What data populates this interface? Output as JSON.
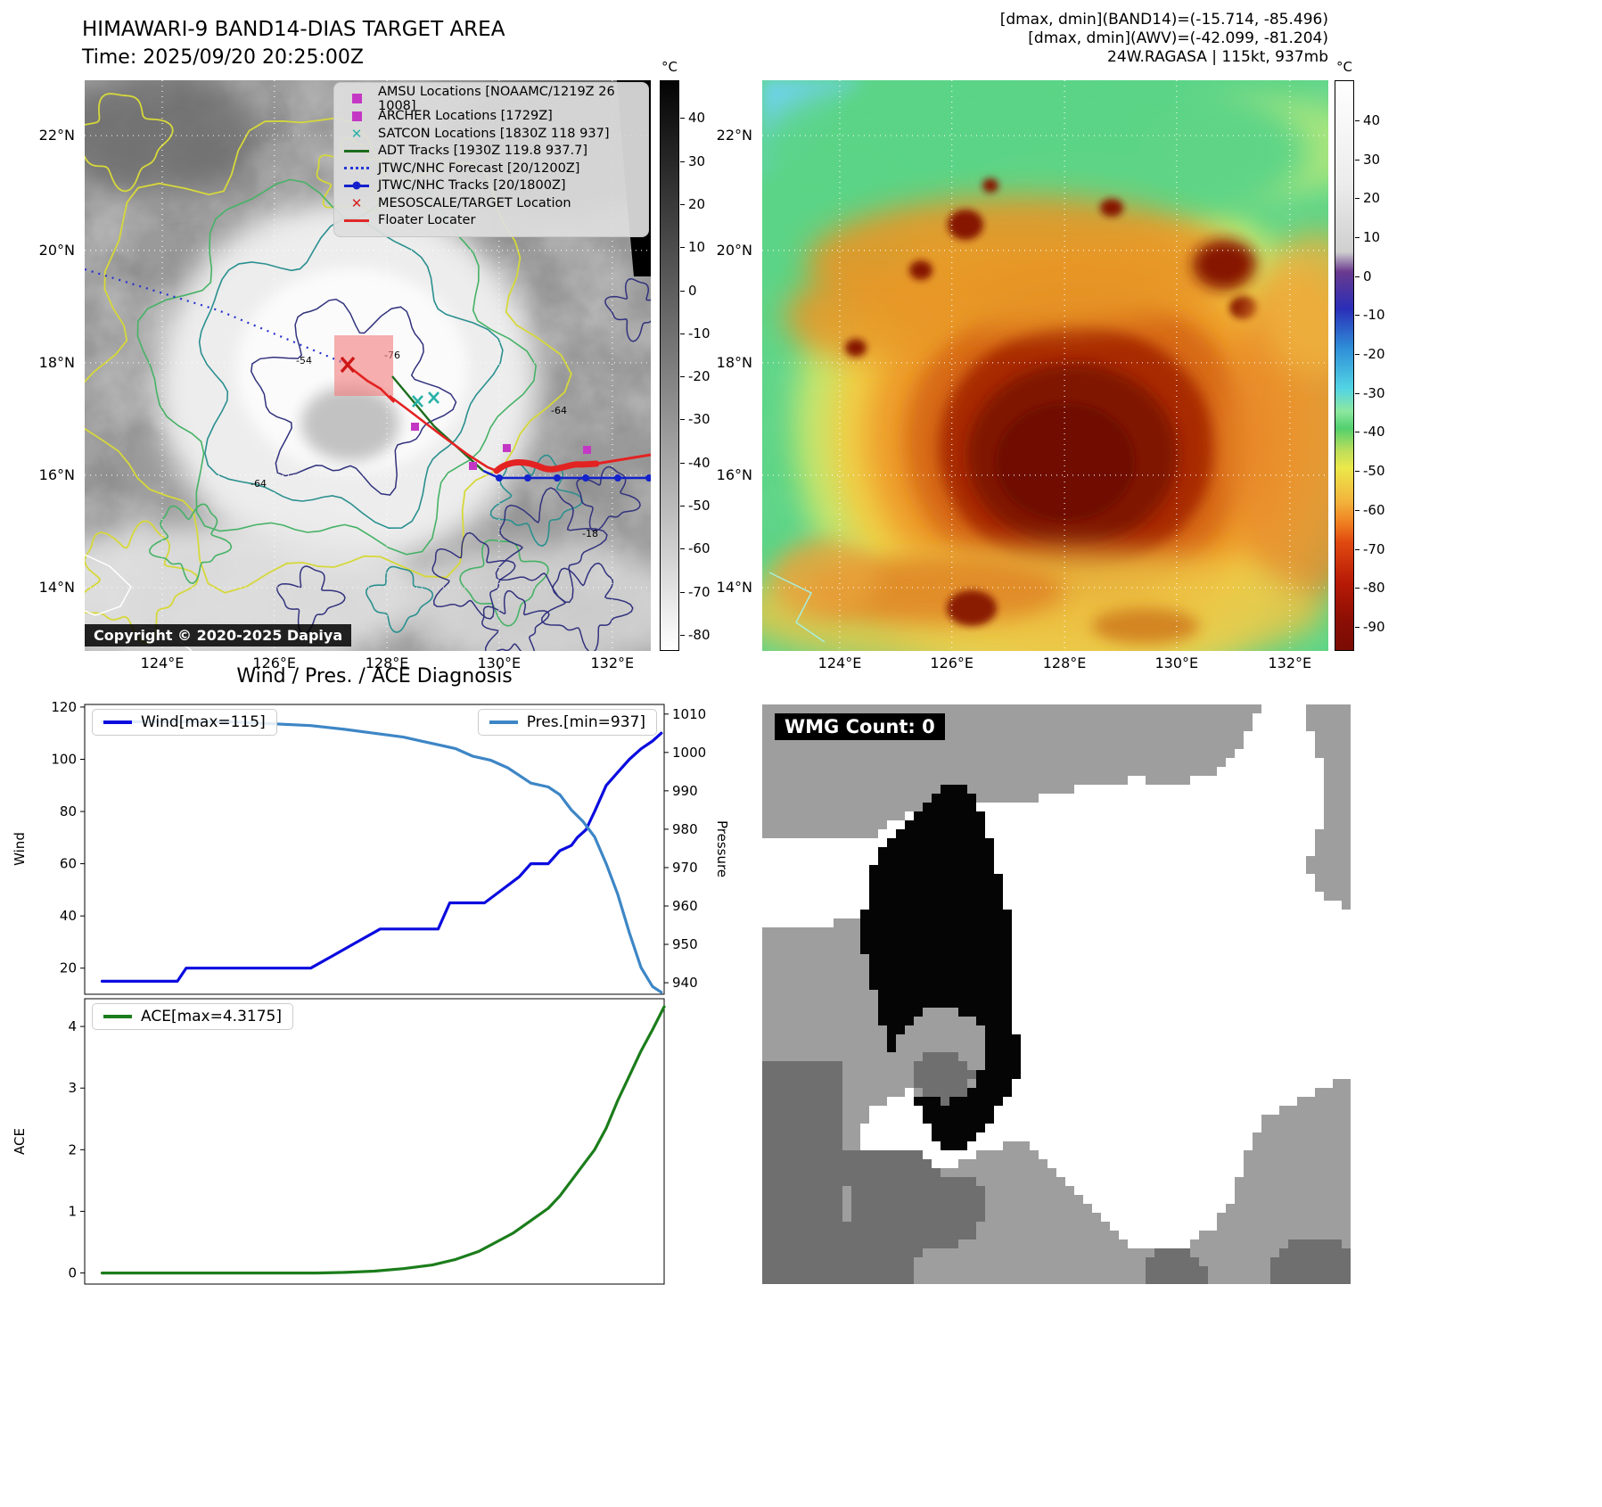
{
  "top_left": {
    "title": "HIMAWARI-9 BAND14-DIAS TARGET AREA",
    "subtitle": "Time: 2025/09/20 20:25:00Z",
    "legend": [
      {
        "icon": "magenta-square",
        "label": "AMSU Locations [NOAAMC/1219Z 26 1008]"
      },
      {
        "icon": "magenta-square",
        "label": "ARCHER Locations [1729Z]"
      },
      {
        "icon": "teal-x",
        "label": "SATCON Locations [1830Z 118 937]"
      },
      {
        "icon": "green-line",
        "label": "ADT Tracks [1930Z 119.8 937.7]"
      },
      {
        "icon": "blue-dotted-line",
        "label": "JTWC/NHC Forecast [20/1200Z]"
      },
      {
        "icon": "blue-line-dot",
        "label": "JTWC/NHC Tracks [20/1800Z]"
      },
      {
        "icon": "red-x",
        "label": "MESOSCALE/TARGET Location"
      },
      {
        "icon": "red-line",
        "label": "Floater Locater"
      }
    ],
    "contour_labels": [
      "-76",
      "-64",
      "-64",
      "-54",
      "-18"
    ],
    "copyright": "Copyright © 2020-2025 Dapiya",
    "colorbar": {
      "unit": "°C",
      "ticks": [
        "40",
        "30",
        "20",
        "10",
        "0",
        "-10",
        "-20",
        "-30",
        "-40",
        "-50",
        "-60",
        "-70",
        "-80"
      ]
    }
  },
  "top_right": {
    "header_lines": [
      "[dmax, dmin](BAND14)=(-15.714, -85.496)",
      "[dmax, dmin](AWV)=(-42.099, -81.204)",
      "24W.RAGASA | 115kt, 937mb"
    ],
    "colorbar": {
      "unit": "°C",
      "ticks": [
        "40",
        "30",
        "20",
        "10",
        "0",
        "-10",
        "-20",
        "-30",
        "-40",
        "-50",
        "-60",
        "-70",
        "-80",
        "-90"
      ]
    }
  },
  "maps": {
    "lat_labels": [
      "22°N",
      "20°N",
      "18°N",
      "16°N",
      "14°N"
    ],
    "lon_labels": [
      "124°E",
      "126°E",
      "128°E",
      "130°E",
      "132°E"
    ]
  },
  "bottom_left": {
    "title": "Wind / Pres. / ACE Diagnosis"
  },
  "bottom_right": {
    "badge": "WMG Count: 0"
  },
  "chart_data": [
    {
      "type": "line",
      "title": "Wind / Pres. / ACE Diagnosis",
      "ylabel_left": "Wind",
      "ylabel_right": "Pressure",
      "ylim_left": [
        10,
        121
      ],
      "ylim_right": [
        937,
        1012.5
      ],
      "yticks_left": [
        20,
        40,
        60,
        80,
        100,
        120
      ],
      "yticks_right": [
        940,
        950,
        960,
        970,
        980,
        990,
        1000,
        1010
      ],
      "x_range": [
        0,
        100
      ],
      "grid": false,
      "legend_position": [
        "upper left",
        "upper right"
      ],
      "series": [
        {
          "name": "Wind[max=115]",
          "axis": "left",
          "color": "#0b0bdf",
          "points": [
            [
              3,
              15
            ],
            [
              16,
              15
            ],
            [
              17.5,
              20
            ],
            [
              39,
              20
            ],
            [
              43,
              25
            ],
            [
              47,
              30
            ],
            [
              51,
              35
            ],
            [
              61,
              35
            ],
            [
              63,
              45
            ],
            [
              69,
              45
            ],
            [
              72,
              50
            ],
            [
              75,
              55
            ],
            [
              77,
              60
            ],
            [
              80,
              60
            ],
            [
              82,
              65
            ],
            [
              84,
              67
            ],
            [
              85,
              70
            ],
            [
              86.5,
              73
            ],
            [
              88,
              80
            ],
            [
              90,
              90
            ],
            [
              92,
              95
            ],
            [
              94,
              100
            ],
            [
              96,
              104
            ],
            [
              98,
              107
            ],
            [
              99.5,
              110
            ]
          ]
        },
        {
          "name": "Pres.[min=937]",
          "axis": "right",
          "color": "#3d86c6",
          "points": [
            [
              3,
              1008
            ],
            [
              25,
              1008
            ],
            [
              39,
              1007
            ],
            [
              45,
              1006
            ],
            [
              50,
              1005
            ],
            [
              55,
              1004
            ],
            [
              58,
              1003
            ],
            [
              61,
              1002
            ],
            [
              64,
              1001
            ],
            [
              67,
              999
            ],
            [
              70,
              998
            ],
            [
              73,
              996
            ],
            [
              75,
              994
            ],
            [
              77,
              992
            ],
            [
              80,
              991
            ],
            [
              82,
              989
            ],
            [
              84,
              985
            ],
            [
              86,
              982
            ],
            [
              88,
              978
            ],
            [
              90,
              971
            ],
            [
              92,
              963
            ],
            [
              94,
              953
            ],
            [
              96,
              944
            ],
            [
              98,
              939
            ],
            [
              99.5,
              937.5
            ]
          ]
        }
      ]
    },
    {
      "type": "line",
      "ylabel_left": "ACE",
      "ylim_left": [
        -0.18,
        4.45
      ],
      "yticks_left": [
        0,
        1,
        2,
        3,
        4
      ],
      "x_range": [
        0,
        100
      ],
      "grid": false,
      "legend_position": [
        "upper left"
      ],
      "series": [
        {
          "name": "ACE[max=4.3175]",
          "axis": "left",
          "color": "#1b7d1b",
          "points": [
            [
              3,
              0
            ],
            [
              40,
              0
            ],
            [
              45,
              0.01
            ],
            [
              50,
              0.03
            ],
            [
              55,
              0.07
            ],
            [
              60,
              0.13
            ],
            [
              64,
              0.22
            ],
            [
              68,
              0.35
            ],
            [
              71,
              0.5
            ],
            [
              74,
              0.65
            ],
            [
              77,
              0.85
            ],
            [
              80,
              1.05
            ],
            [
              82,
              1.25
            ],
            [
              84,
              1.5
            ],
            [
              86,
              1.75
            ],
            [
              88,
              2.0
            ],
            [
              90,
              2.35
            ],
            [
              92,
              2.8
            ],
            [
              94,
              3.2
            ],
            [
              96,
              3.6
            ],
            [
              98,
              3.95
            ],
            [
              100,
              4.32
            ]
          ]
        }
      ]
    }
  ]
}
